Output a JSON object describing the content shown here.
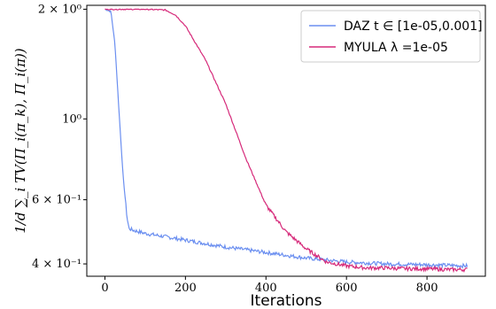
{
  "chart_data": {
    "type": "line",
    "xlabel": "Iterations",
    "ylabel": "1/d ∑_i TV(Π_i(π_k), Π_i(π))",
    "y_scale": "log",
    "xlim": [
      -45,
      945
    ],
    "ylim": [
      0.37,
      2.05
    ],
    "grid": false,
    "legend_position": "top-right",
    "x_ticks": [
      0,
      200,
      400,
      600,
      800
    ],
    "x_tick_labels": [
      "0",
      "200",
      "400",
      "600",
      "800"
    ],
    "y_ticks": [
      0.4,
      0.6,
      1.0,
      2.0
    ],
    "y_tick_labels": [
      "4 × 10⁻¹",
      "6 × 10⁻¹",
      "10⁰",
      "2 × 10⁰"
    ],
    "series": [
      {
        "name": "DAZ t ∈ [1e-05,0.001]",
        "color": "#6b8ff0",
        "x": [
          0,
          15,
          25,
          35,
          45,
          55,
          60,
          70,
          100,
          150,
          200,
          300,
          400,
          500,
          600,
          700,
          800,
          900
        ],
        "y": [
          2.0,
          1.97,
          1.6,
          1.05,
          0.7,
          0.535,
          0.5,
          0.495,
          0.485,
          0.475,
          0.465,
          0.445,
          0.43,
          0.415,
          0.405,
          0.4,
          0.398,
          0.395
        ]
      },
      {
        "name": "MYULA λ =1e-05",
        "color": "#d62a7a",
        "x": [
          0,
          100,
          150,
          175,
          200,
          250,
          300,
          350,
          400,
          450,
          500,
          550,
          600,
          650,
          700,
          750,
          800,
          850,
          900
        ],
        "y": [
          2.0,
          2.0,
          1.99,
          1.93,
          1.8,
          1.45,
          1.1,
          0.78,
          0.58,
          0.49,
          0.44,
          0.405,
          0.395,
          0.39,
          0.39,
          0.388,
          0.388,
          0.386,
          0.386
        ]
      }
    ]
  }
}
